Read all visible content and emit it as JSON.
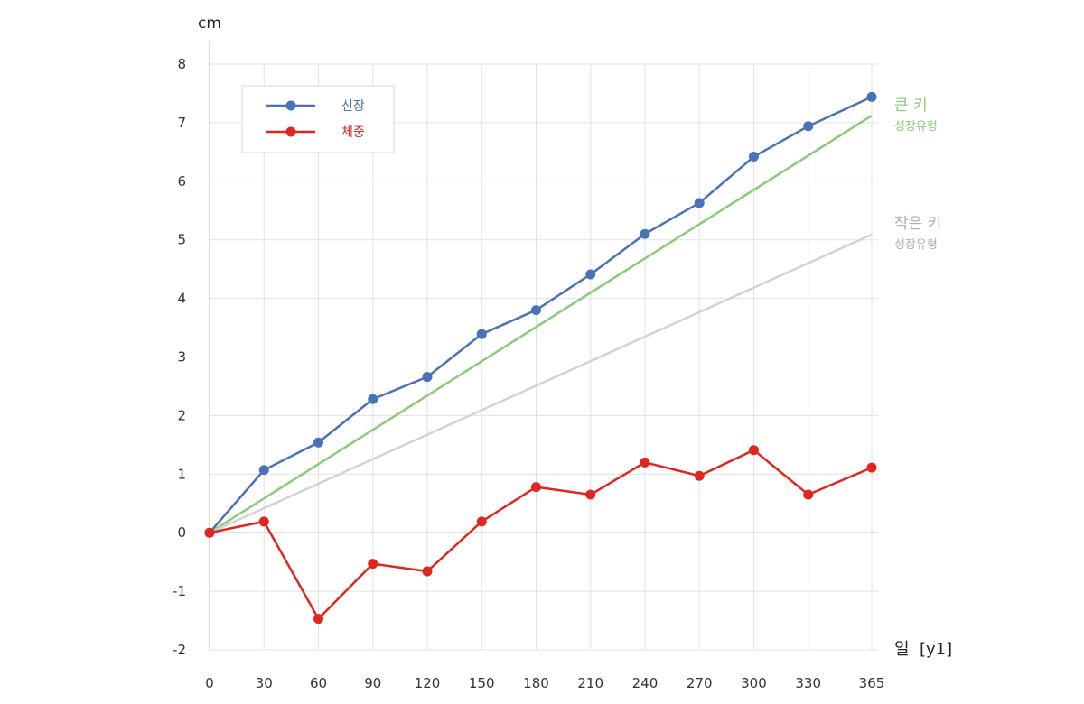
{
  "chart_data": {
    "type": "line",
    "y_unit_label": "cm",
    "x_unit_label": "일  [y1]",
    "x": [
      0,
      30,
      60,
      90,
      120,
      150,
      180,
      210,
      240,
      270,
      300,
      330,
      365
    ],
    "x_tick_labels": [
      "0",
      "30",
      "60",
      "90",
      "120",
      "150",
      "180",
      "210",
      "240",
      "270",
      "300",
      "330",
      "365"
    ],
    "y_ticks": [
      8,
      7,
      6,
      5,
      4,
      3,
      2,
      1,
      0,
      -1,
      -2
    ],
    "y_tick_labels": [
      "8",
      "7",
      "6",
      "5",
      "4",
      "3",
      "2",
      "1",
      "0",
      "-1",
      "-2"
    ],
    "xlim": [
      0,
      365
    ],
    "ylim": [
      -2,
      8
    ],
    "grid": true,
    "legend_position": "top-left",
    "series": [
      {
        "name": "신장",
        "color": "#4a72b8",
        "values": [
          0,
          1.07,
          1.54,
          2.28,
          2.66,
          3.39,
          3.8,
          4.41,
          5.1,
          5.63,
          6.42,
          6.94,
          7.44
        ]
      },
      {
        "name": "체중",
        "color": "#e0261f",
        "values": [
          0,
          0.19,
          -1.47,
          -0.53,
          -0.66,
          0.19,
          0.78,
          0.65,
          1.2,
          0.97,
          1.41,
          0.65,
          1.11
        ]
      }
    ],
    "reference_lines": [
      {
        "label_main": "큰 키",
        "label_sub": "성장유형",
        "color": "#8cc97a",
        "from": [
          0,
          0
        ],
        "to": [
          365,
          7.12
        ]
      },
      {
        "label_main": "작은 키",
        "label_sub": "성장유형",
        "color": "#d3d3d3",
        "label_color": "#b0b0b0",
        "from": [
          0,
          0
        ],
        "to": [
          365,
          5.09
        ]
      }
    ]
  }
}
